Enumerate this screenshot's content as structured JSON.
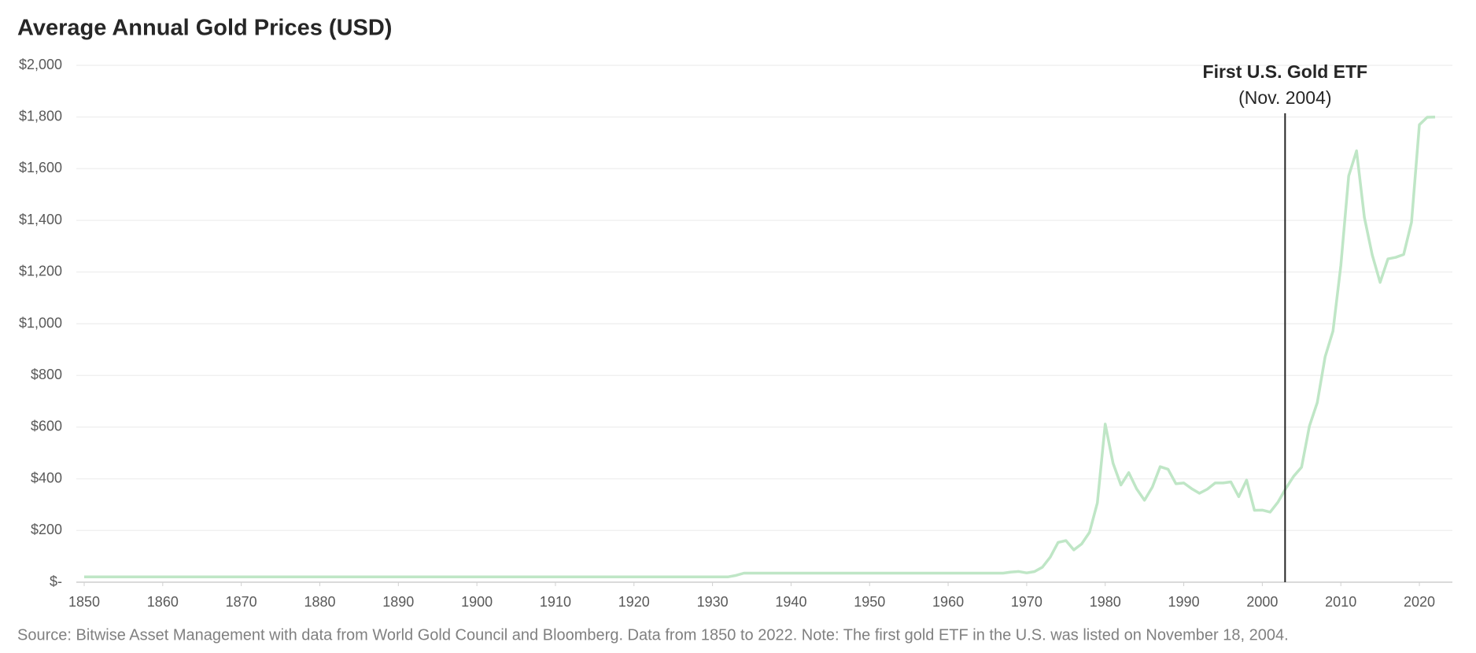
{
  "chart_data": {
    "type": "line",
    "title": "Average Annual Gold Prices (USD)",
    "source": "Source: Bitwise Asset Management with data from World Gold Council and Bloomberg. Data from 1850 to 2022. Note: The first gold ETF in the U.S. was listed on November 18, 2004.",
    "annotation": {
      "title": "First U.S. Gold ETF",
      "subtitle": "(Nov. 2004)",
      "x": 2002.9
    },
    "color": "#bfe6c6",
    "grid": true,
    "xlim": [
      1850,
      2022
    ],
    "xticks": [
      1850,
      1860,
      1870,
      1880,
      1890,
      1900,
      1910,
      1920,
      1930,
      1940,
      1950,
      1960,
      1970,
      1980,
      1990,
      2000,
      2010,
      2020
    ],
    "ylim": [
      0,
      2000
    ],
    "yticks": [
      {
        "value": 0,
        "label": "$-"
      },
      {
        "value": 200,
        "label": "$200"
      },
      {
        "value": 400,
        "label": "$400"
      },
      {
        "value": 600,
        "label": "$600"
      },
      {
        "value": 800,
        "label": "$800"
      },
      {
        "value": 1000,
        "label": "$1,000"
      },
      {
        "value": 1200,
        "label": "$1,200"
      },
      {
        "value": 1400,
        "label": "$1,400"
      },
      {
        "value": 1600,
        "label": "$1,600"
      },
      {
        "value": 1800,
        "label": "$1,800"
      },
      {
        "value": 2000,
        "label": "$2,000"
      }
    ],
    "x": [
      1850,
      1851,
      1852,
      1853,
      1854,
      1855,
      1856,
      1857,
      1858,
      1859,
      1860,
      1861,
      1862,
      1863,
      1864,
      1865,
      1866,
      1867,
      1868,
      1869,
      1870,
      1871,
      1872,
      1873,
      1874,
      1875,
      1876,
      1877,
      1878,
      1879,
      1880,
      1881,
      1882,
      1883,
      1884,
      1885,
      1886,
      1887,
      1888,
      1889,
      1890,
      1891,
      1892,
      1893,
      1894,
      1895,
      1896,
      1897,
      1898,
      1899,
      1900,
      1901,
      1902,
      1903,
      1904,
      1905,
      1906,
      1907,
      1908,
      1909,
      1910,
      1911,
      1912,
      1913,
      1914,
      1915,
      1916,
      1917,
      1918,
      1919,
      1920,
      1921,
      1922,
      1923,
      1924,
      1925,
      1926,
      1927,
      1928,
      1929,
      1930,
      1931,
      1932,
      1933,
      1934,
      1935,
      1936,
      1937,
      1938,
      1939,
      1940,
      1941,
      1942,
      1943,
      1944,
      1945,
      1946,
      1947,
      1948,
      1949,
      1950,
      1951,
      1952,
      1953,
      1954,
      1955,
      1956,
      1957,
      1958,
      1959,
      1960,
      1961,
      1962,
      1963,
      1964,
      1965,
      1966,
      1967,
      1968,
      1969,
      1970,
      1971,
      1972,
      1973,
      1974,
      1975,
      1976,
      1977,
      1978,
      1979,
      1980,
      1981,
      1982,
      1983,
      1984,
      1985,
      1986,
      1987,
      1988,
      1989,
      1990,
      1991,
      1992,
      1993,
      1994,
      1995,
      1996,
      1997,
      1998,
      1999,
      2000,
      2001,
      2002,
      2003,
      2004,
      2005,
      2006,
      2007,
      2008,
      2009,
      2010,
      2011,
      2012,
      2013,
      2014,
      2015,
      2016,
      2017,
      2018,
      2019,
      2020,
      2021,
      2022
    ],
    "values": [
      20.67,
      20.67,
      20.67,
      20.67,
      20.67,
      20.67,
      20.67,
      20.67,
      20.67,
      20.67,
      20.67,
      20.67,
      20.67,
      20.67,
      20.67,
      20.67,
      20.67,
      20.67,
      20.67,
      20.67,
      20.67,
      20.67,
      20.67,
      20.67,
      20.67,
      20.67,
      20.67,
      20.67,
      20.67,
      20.67,
      20.67,
      20.67,
      20.67,
      20.67,
      20.67,
      20.67,
      20.67,
      20.67,
      20.67,
      20.67,
      20.67,
      20.67,
      20.67,
      20.67,
      20.67,
      20.67,
      20.67,
      20.67,
      20.67,
      20.67,
      20.67,
      20.67,
      20.67,
      20.67,
      20.67,
      20.67,
      20.67,
      20.67,
      20.67,
      20.67,
      20.67,
      20.67,
      20.67,
      20.67,
      20.67,
      20.67,
      20.67,
      20.67,
      20.67,
      20.67,
      20.67,
      20.67,
      20.67,
      20.67,
      20.67,
      20.67,
      20.67,
      20.67,
      20.67,
      20.67,
      20.67,
      20.67,
      20.67,
      26.33,
      35,
      35,
      35,
      35,
      35,
      35,
      35,
      35,
      35,
      35,
      35,
      35,
      35,
      35,
      35,
      35,
      35,
      35,
      35,
      35,
      35,
      35,
      35,
      35,
      35,
      35,
      35,
      35,
      35,
      35,
      35,
      35,
      35,
      35,
      39.3,
      41.3,
      36,
      41,
      58,
      97,
      154,
      161,
      125,
      148,
      193,
      307,
      612,
      460,
      376,
      424,
      361,
      317,
      368,
      447,
      437,
      381,
      384,
      362,
      344,
      360,
      384,
      384,
      388,
      331,
      395,
      278,
      279,
      271,
      310,
      363,
      410,
      445,
      604,
      695,
      872,
      972,
      1225,
      1572,
      1669,
      1411,
      1266,
      1160,
      1251,
      1257,
      1268,
      1393,
      1770,
      1799,
      1800
    ]
  }
}
